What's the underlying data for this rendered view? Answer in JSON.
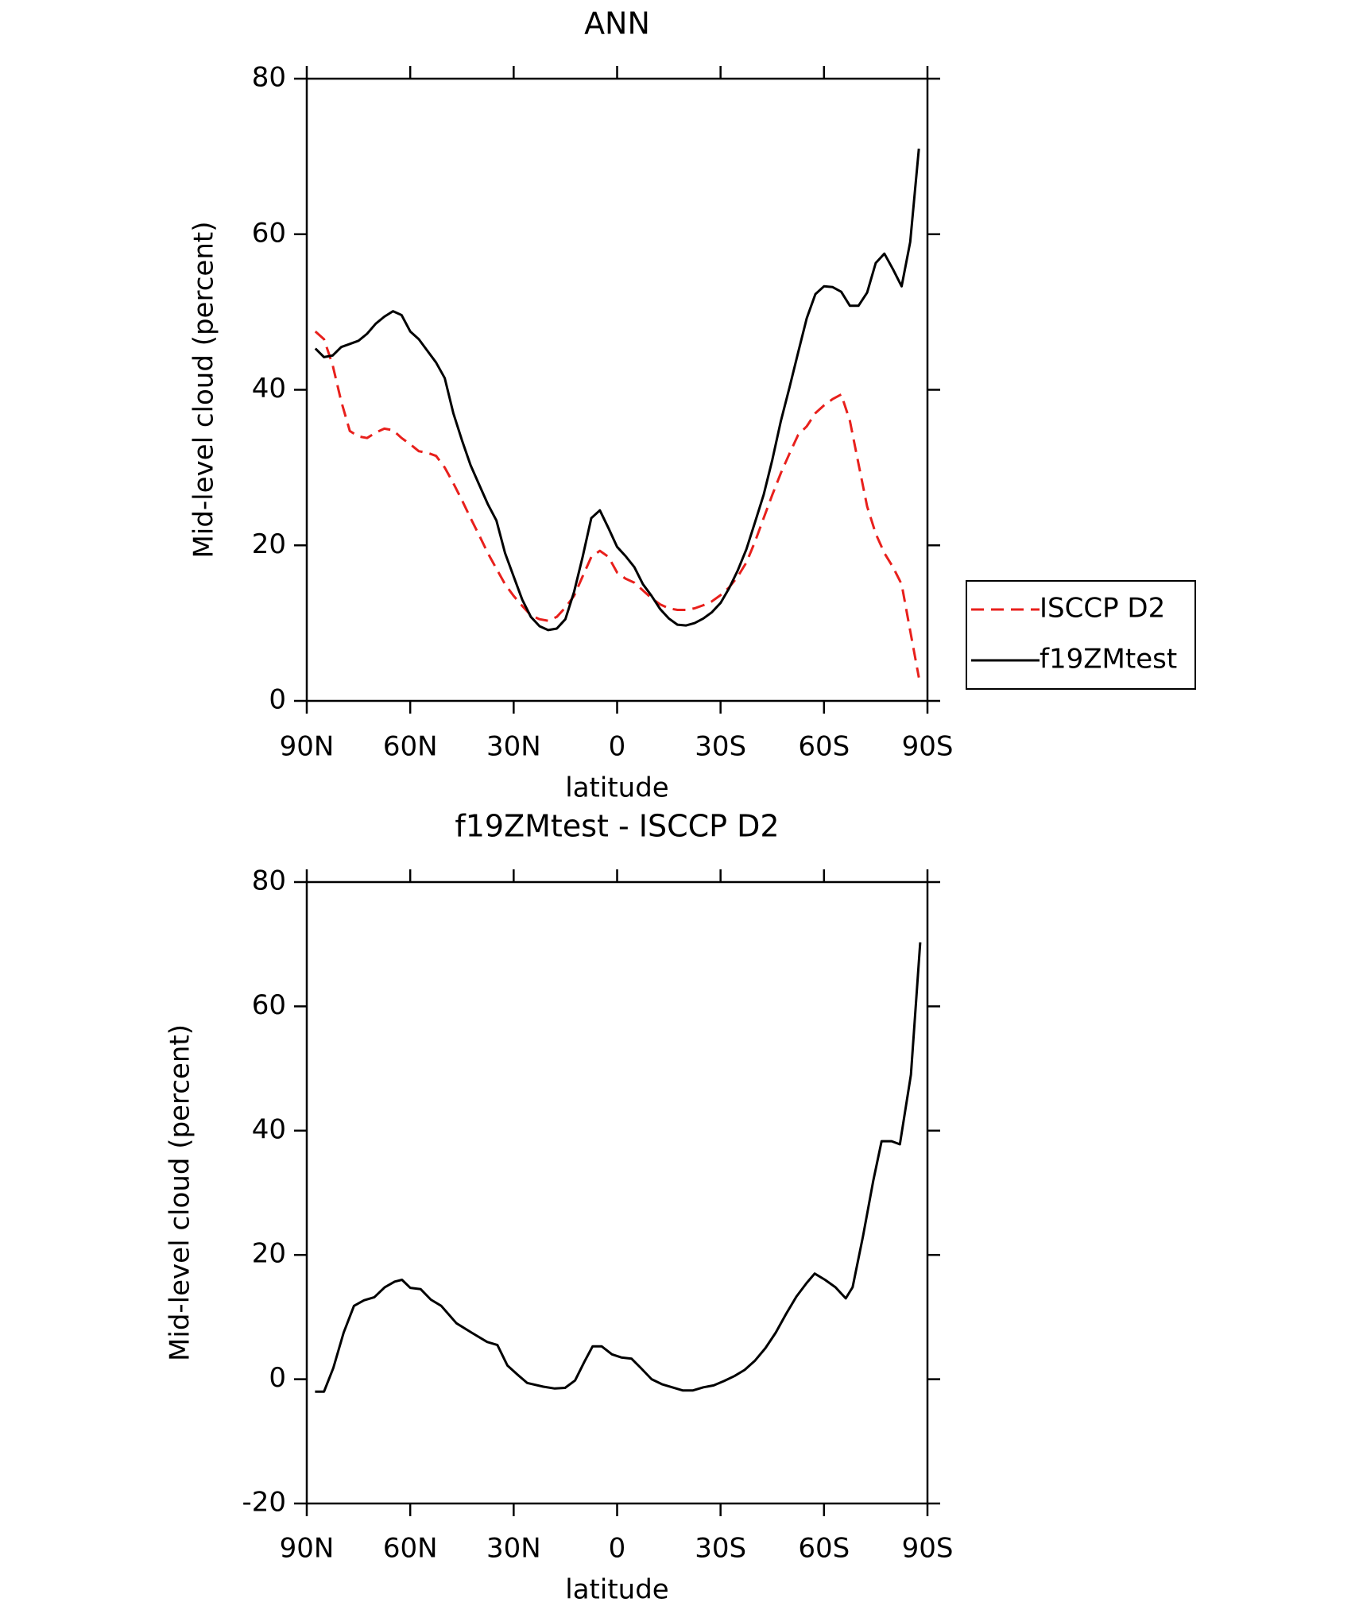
{
  "chart_data": [
    {
      "type": "line",
      "title": "ANN",
      "xlabel": "latitude",
      "ylabel": "Mid-level cloud (percent)",
      "x": [
        87.5,
        85,
        82.5,
        80,
        77.5,
        75,
        72.5,
        70,
        67.5,
        65,
        62.5,
        60,
        57.5,
        55,
        52.5,
        50,
        47.5,
        45,
        42.5,
        40,
        37.5,
        35,
        32.5,
        30,
        27.5,
        25,
        22.5,
        20,
        17.5,
        15,
        12.5,
        10,
        7.5,
        5,
        2.5,
        0,
        -2.5,
        -5,
        -7.5,
        -10,
        -12.5,
        -15,
        -17.5,
        -20,
        -22.5,
        -25,
        -27.5,
        -30,
        -32.5,
        -35,
        -37.5,
        -40,
        -42.5,
        -45,
        -47.5,
        -50,
        -52.5,
        -55,
        -57.5,
        -60,
        -62.5,
        -65,
        -67.5,
        -70,
        -72.5,
        -75,
        -77.5,
        -80,
        -82.5,
        -85,
        -87.5
      ],
      "series": [
        {
          "name": "ISCCP D2",
          "color": "#e8201c",
          "linestyle": "dashed",
          "values": [
            47.5,
            46.5,
            43.2,
            38.5,
            34.7,
            34,
            33.8,
            34.5,
            35,
            34.8,
            33.8,
            33,
            32.1,
            31.9,
            31.5,
            30,
            28,
            25.8,
            23.5,
            21.3,
            19,
            17,
            15,
            13.5,
            12.2,
            11,
            10.5,
            10.3,
            10.8,
            12,
            13.5,
            16,
            18.5,
            19.3,
            18.5,
            16.5,
            15.7,
            15.2,
            14.2,
            13.2,
            12.4,
            11.9,
            11.7,
            11.7,
            11.9,
            12.3,
            12.8,
            13.6,
            14.6,
            16,
            17.8,
            20.5,
            23.5,
            26.5,
            29.3,
            31.8,
            34.2,
            35.3,
            37,
            38,
            38.8,
            39.4,
            36,
            30.5,
            25,
            21.5,
            19,
            17.2,
            15,
            9,
            3
          ]
        },
        {
          "name": "f19ZMtest",
          "color": "#000000",
          "linestyle": "solid",
          "values": [
            45.3,
            44.2,
            44.4,
            45.5,
            45.9,
            46.3,
            47.2,
            48.5,
            49.4,
            50.1,
            49.6,
            47.5,
            46.5,
            45,
            43.5,
            41.5,
            37,
            33.5,
            30.3,
            27.8,
            25.3,
            23.2,
            19,
            16,
            13,
            10.8,
            9.6,
            9.1,
            9.3,
            10.5,
            14,
            18.5,
            23.5,
            24.5,
            22.2,
            19.8,
            18.6,
            17.2,
            15,
            13.5,
            11.8,
            10.6,
            9.8,
            9.7,
            10,
            10.6,
            11.4,
            12.6,
            14.5,
            16.8,
            19.5,
            23,
            26.5,
            31,
            36,
            40.3,
            44.8,
            49.2,
            52.3,
            53.3,
            53.2,
            52.6,
            50.8,
            50.8,
            52.5,
            56.3,
            57.5,
            55.5,
            53.3,
            59,
            71
          ]
        }
      ],
      "xlim": [
        90,
        -90
      ],
      "xticks": [
        {
          "value": 90,
          "label": "90N"
        },
        {
          "value": 60,
          "label": "60N"
        },
        {
          "value": 30,
          "label": "30N"
        },
        0,
        {
          "value": -30,
          "label": "30S"
        },
        {
          "value": -60,
          "label": "60S"
        },
        {
          "value": -90,
          "label": "90S"
        }
      ],
      "ylim": [
        0,
        80
      ],
      "yticks": [
        0,
        20,
        40,
        60,
        80
      ],
      "legend": "right"
    },
    {
      "type": "line",
      "title": "f19ZMtest - ISCCP D2",
      "xlabel": "latitude",
      "ylabel": "Mid-level cloud (percent)",
      "x": [
        87.6,
        85,
        82.3,
        79.3,
        76.3,
        73.4,
        70.4,
        67.4,
        64.5,
        62.4,
        60,
        57,
        54,
        51,
        46.6,
        42.2,
        37.7,
        34.7,
        31.8,
        28.8,
        26.1,
        21.4,
        18.1,
        15.1,
        12.2,
        9.5,
        7.1,
        4.5,
        1.5,
        -1.2,
        -4.2,
        -6.9,
        -10,
        -13,
        -16,
        -19,
        -22,
        -25,
        -28,
        -31,
        -34,
        -37,
        -40,
        -43,
        -46,
        -49,
        -52,
        -55,
        -57.3,
        -60.3,
        -63.3,
        -66.3,
        -68.3,
        -71.3,
        -74.3,
        -76.7,
        -79.6,
        -82,
        -85.2,
        -87.9
      ],
      "values": [
        -2,
        -2,
        1.8,
        7.5,
        11.8,
        12.7,
        13.2,
        14.8,
        15.7,
        16,
        14.7,
        14.5,
        12.8,
        11.8,
        9,
        7.5,
        6,
        5.5,
        2.2,
        0.7,
        -0.6,
        -1.2,
        -1.5,
        -1.4,
        -0.2,
        2.8,
        5.3,
        5.3,
        4,
        3.5,
        3.3,
        1.8,
        0,
        -0.8,
        -1.3,
        -1.8,
        -1.8,
        -1.3,
        -1,
        -0.3,
        0.5,
        1.5,
        3,
        5,
        7.5,
        10.5,
        13.3,
        15.5,
        17,
        16,
        14.8,
        13,
        14.8,
        23,
        32,
        38.3,
        38.3,
        37.8,
        49,
        70.3
      ],
      "color": "#000000",
      "xlim": [
        90,
        -90
      ],
      "xticks": [
        {
          "value": 90,
          "label": "90N"
        },
        {
          "value": 60,
          "label": "60N"
        },
        {
          "value": 30,
          "label": "30N"
        },
        0,
        {
          "value": -30,
          "label": "30S"
        },
        {
          "value": -60,
          "label": "60S"
        },
        {
          "value": -90,
          "label": "90S"
        }
      ],
      "ylim": [
        -20,
        80
      ],
      "yticks": [
        -20,
        0,
        20,
        40,
        60,
        80
      ]
    }
  ]
}
